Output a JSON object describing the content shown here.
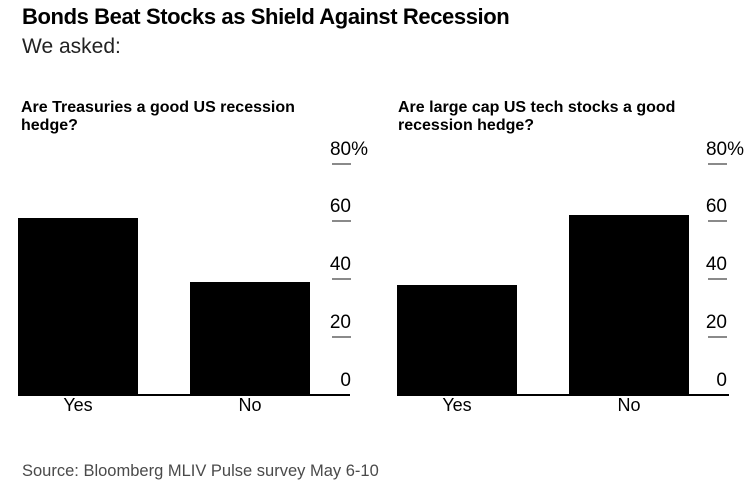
{
  "header": {
    "title": "Bonds Beat Stocks as Shield Against Recession",
    "subtitle": "We asked:"
  },
  "footer": {
    "source": "Source: Bloomberg MLIV Pulse survey May 6-10"
  },
  "colors": {
    "bar": "#000000",
    "tick_dash": "#8a8a8a",
    "axis_line": "#000000",
    "text": "#000000",
    "source_text": "#4a4a4a",
    "background": "#ffffff"
  },
  "chart_data": [
    {
      "type": "bar",
      "title": "Are Treasuries a good US recession hedge?",
      "title_lines": [
        "Are Treasuries a good US recession",
        "hedge?"
      ],
      "categories": [
        "Yes",
        "No"
      ],
      "values": [
        61,
        39
      ],
      "unit": "%",
      "xlabel": "",
      "ylabel": "",
      "ylim": [
        0,
        80
      ],
      "yticks": [
        0,
        20,
        40,
        60,
        80
      ],
      "ytick_labels": [
        "0",
        "20",
        "40",
        "60",
        "80%"
      ],
      "grid": false,
      "legend": "none",
      "axis_side": "right"
    },
    {
      "type": "bar",
      "title": "Are large cap US tech stocks a good recession hedge?",
      "title_lines": [
        "Are large cap US tech stocks a good",
        "recession hedge?"
      ],
      "categories": [
        "Yes",
        "No"
      ],
      "values": [
        38,
        62
      ],
      "unit": "%",
      "xlabel": "",
      "ylabel": "",
      "ylim": [
        0,
        80
      ],
      "yticks": [
        0,
        20,
        40,
        60,
        80
      ],
      "ytick_labels": [
        "0",
        "20",
        "40",
        "60",
        "80%"
      ],
      "grid": false,
      "legend": "none",
      "axis_side": "right"
    }
  ]
}
